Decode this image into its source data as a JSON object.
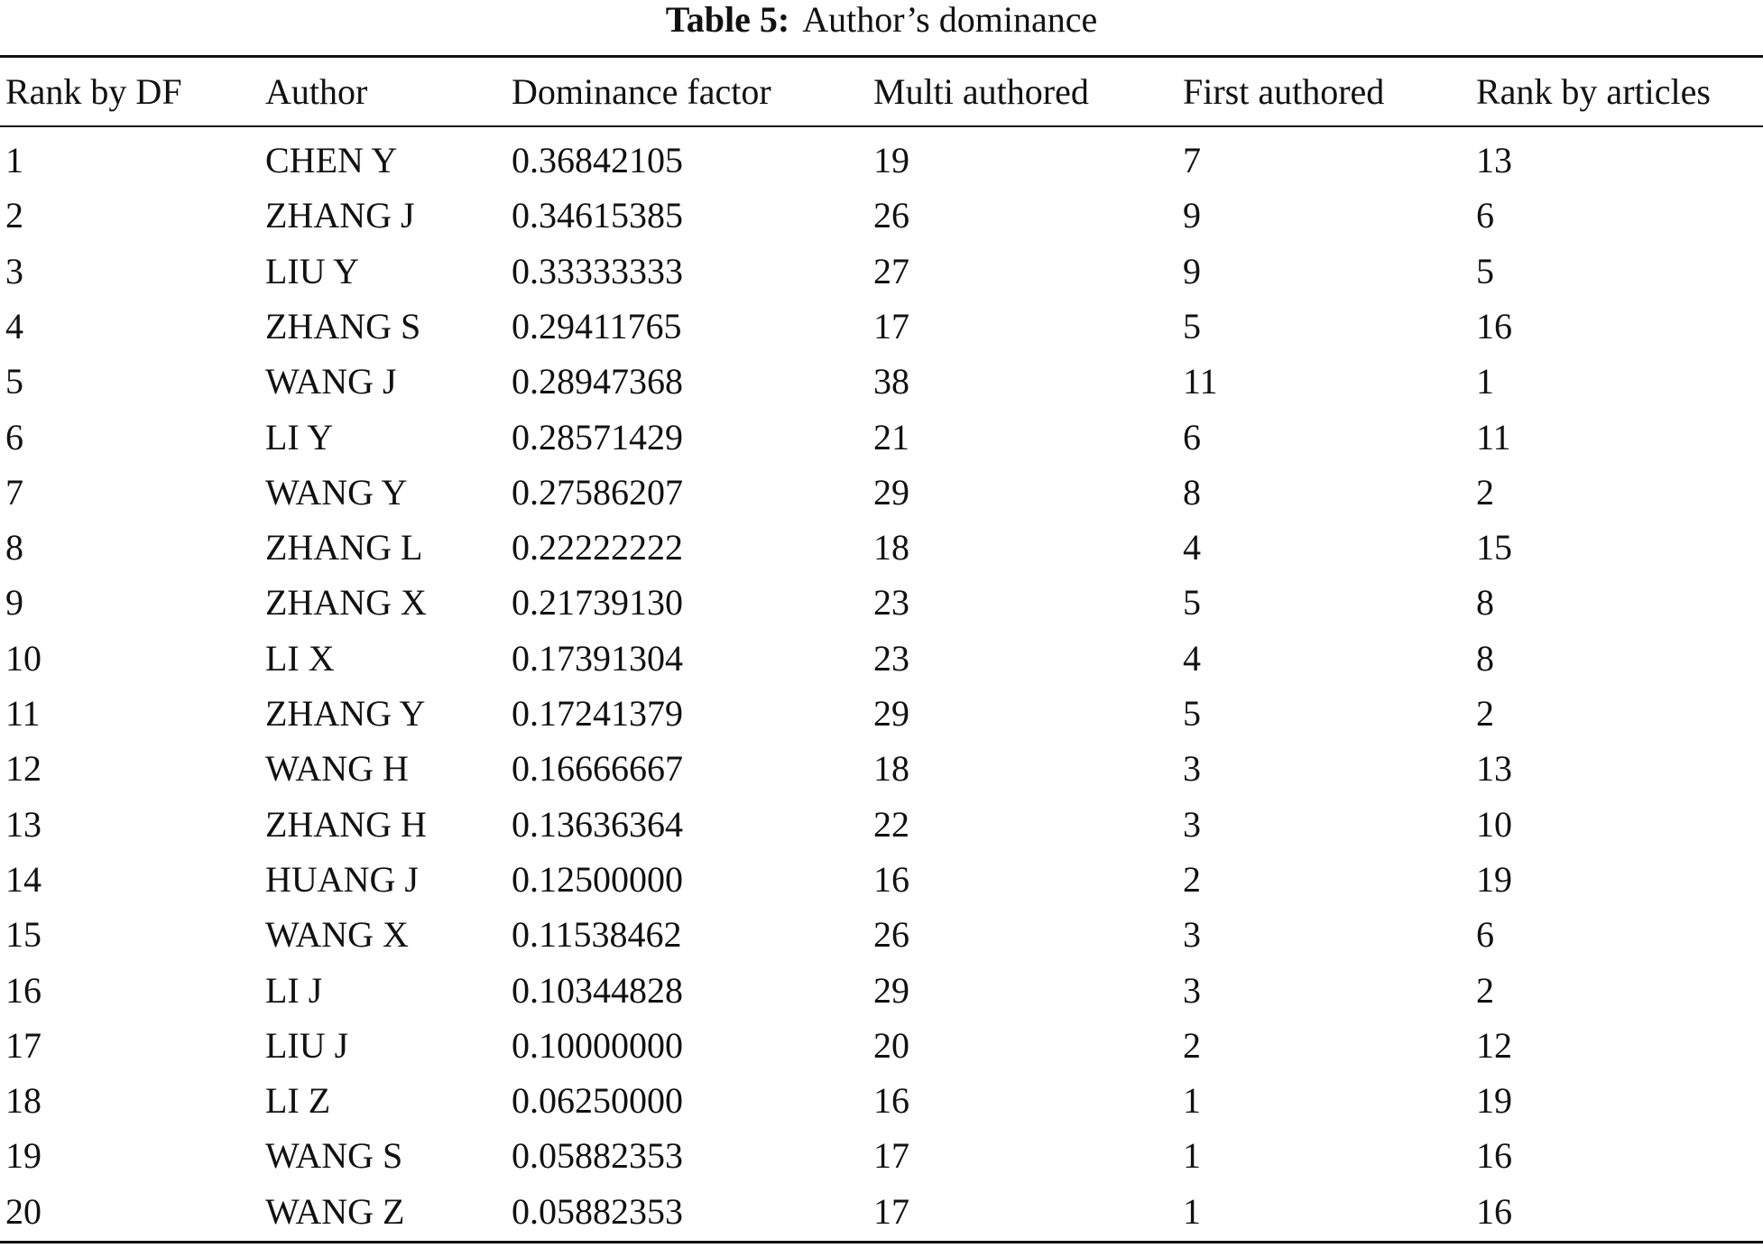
{
  "table": {
    "caption_label": "Table 5:",
    "caption": "Author’s dominance",
    "header": [
      "Rank by DF",
      "Author",
      "Dominance factor",
      "Multi authored",
      "First authored",
      "Rank by articles"
    ],
    "rows": [
      [
        "1",
        "CHEN Y",
        "0.36842105",
        "19",
        "7",
        "13"
      ],
      [
        "2",
        "ZHANG J",
        "0.34615385",
        "26",
        "9",
        "6"
      ],
      [
        "3",
        "LIU Y",
        "0.33333333",
        "27",
        "9",
        "5"
      ],
      [
        "4",
        "ZHANG S",
        "0.29411765",
        "17",
        "5",
        "16"
      ],
      [
        "5",
        "WANG J",
        "0.28947368",
        "38",
        "11",
        "1"
      ],
      [
        "6",
        "LI Y",
        "0.28571429",
        "21",
        "6",
        "11"
      ],
      [
        "7",
        "WANG Y",
        "0.27586207",
        "29",
        "8",
        "2"
      ],
      [
        "8",
        "ZHANG L",
        "0.22222222",
        "18",
        "4",
        "15"
      ],
      [
        "9",
        "ZHANG X",
        "0.21739130",
        "23",
        "5",
        "8"
      ],
      [
        "10",
        "LI X",
        "0.17391304",
        "23",
        "4",
        "8"
      ],
      [
        "11",
        "ZHANG Y",
        "0.17241379",
        "29",
        "5",
        "2"
      ],
      [
        "12",
        "WANG H",
        "0.16666667",
        "18",
        "3",
        "13"
      ],
      [
        "13",
        "ZHANG H",
        "0.13636364",
        "22",
        "3",
        "10"
      ],
      [
        "14",
        "HUANG J",
        "0.12500000",
        "16",
        "2",
        "19"
      ],
      [
        "15",
        "WANG X",
        "0.11538462",
        "26",
        "3",
        "6"
      ],
      [
        "16",
        "LI J",
        "0.10344828",
        "29",
        "3",
        "2"
      ],
      [
        "17",
        "LIU J",
        "0.10000000",
        "20",
        "2",
        "12"
      ],
      [
        "18",
        "LI Z",
        "0.06250000",
        "16",
        "1",
        "19"
      ],
      [
        "19",
        "WANG S",
        "0.05882353",
        "17",
        "1",
        "16"
      ],
      [
        "20",
        "WANG Z",
        "0.05882353",
        "17",
        "1",
        "16"
      ]
    ]
  }
}
